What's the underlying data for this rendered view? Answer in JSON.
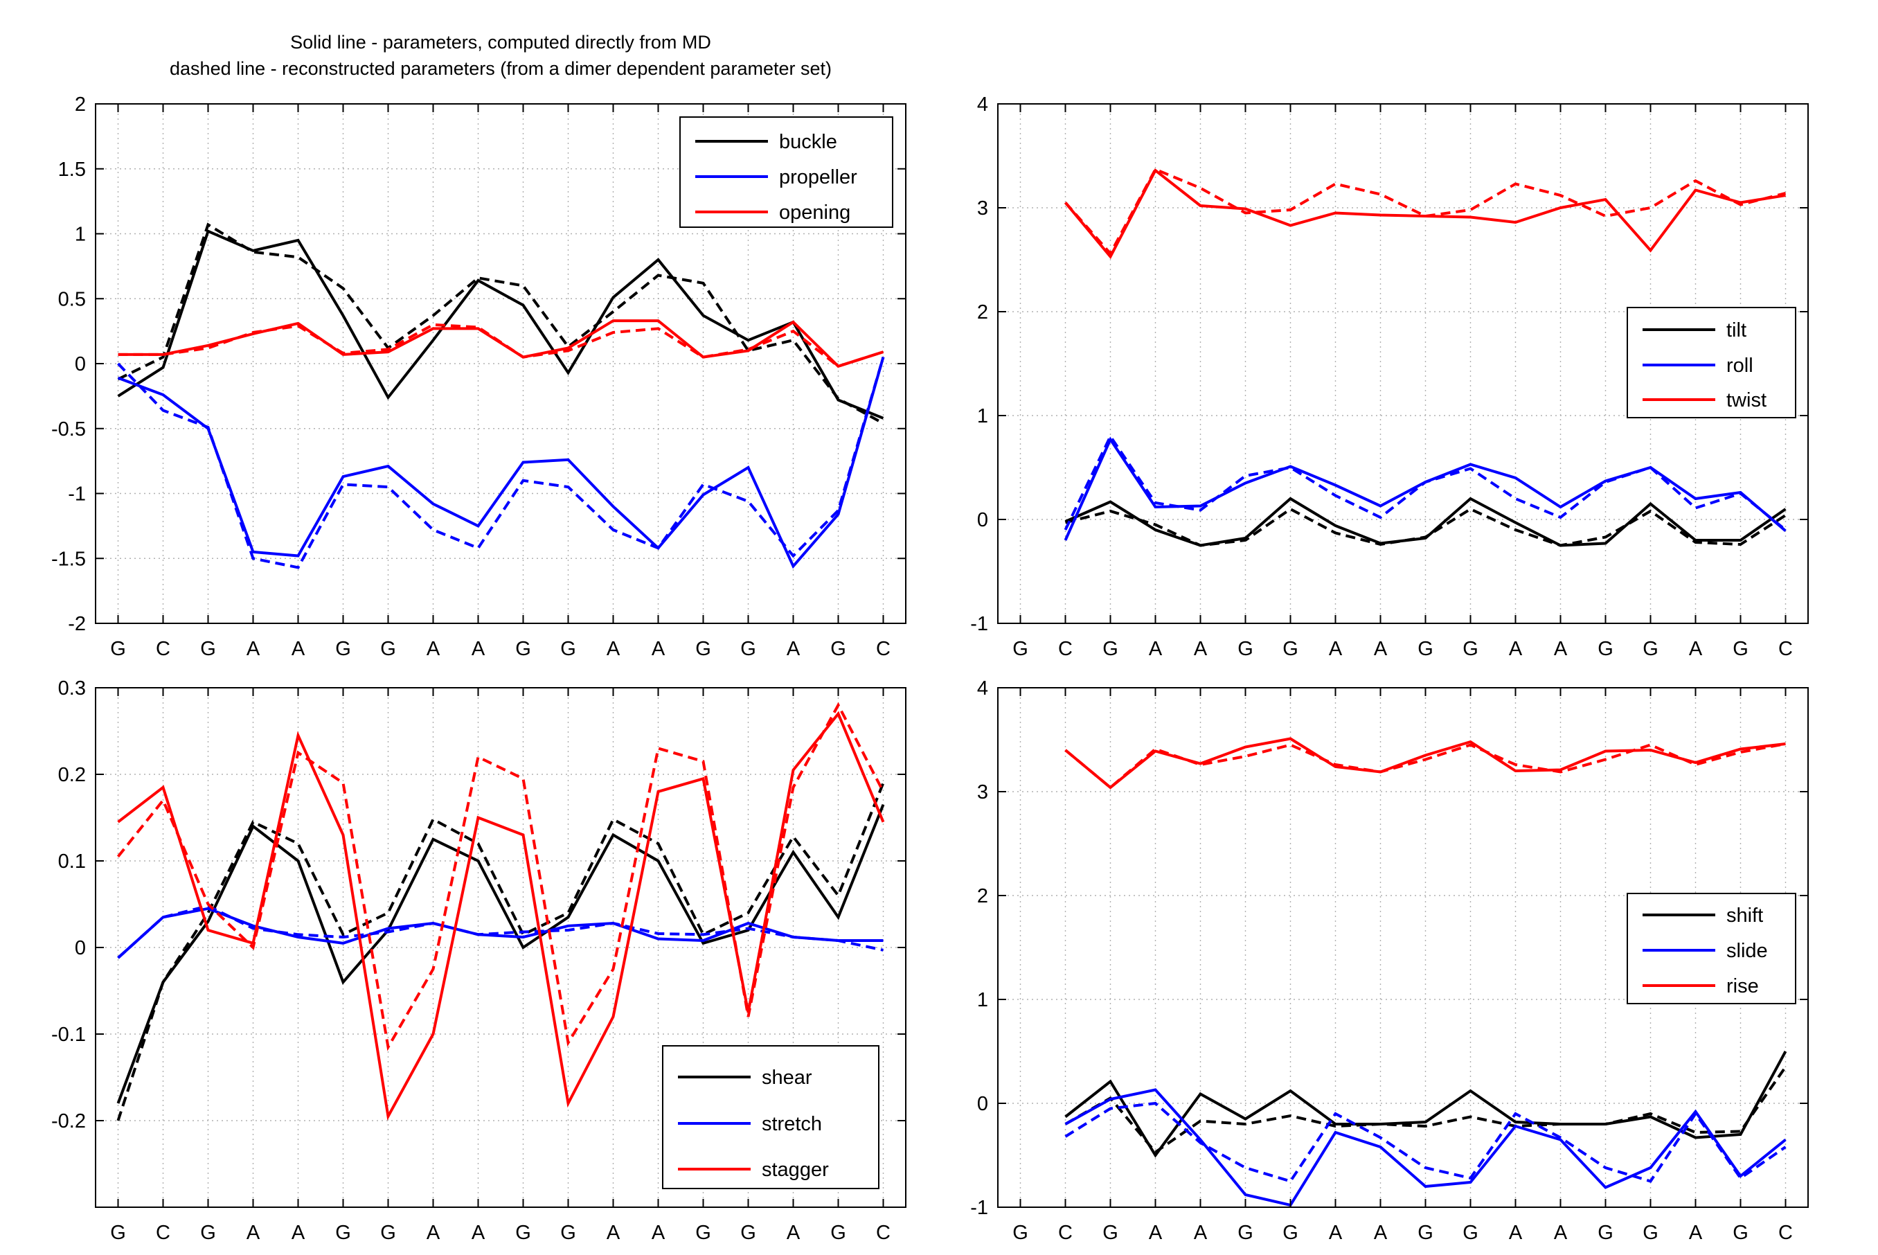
{
  "title_lines": [
    "Solid line - parameters, computed directly from MD",
    "dashed line - reconstructed parameters (from a dimer dependent parameter set)"
  ],
  "colors": {
    "black": "#000000",
    "blue": "#0000ff",
    "red": "#ff0000",
    "grid": "#b0b0b0"
  },
  "chart_data": [
    {
      "type": "line",
      "name": "base-pair-rotations",
      "categories": [
        "G",
        "C",
        "G",
        "A",
        "A",
        "G",
        "G",
        "A",
        "A",
        "G",
        "G",
        "A",
        "A",
        "G",
        "G",
        "A",
        "G",
        "C"
      ],
      "xlim": [
        0.5,
        18.5
      ],
      "ylim": [
        -2,
        2
      ],
      "yticks": [
        "2",
        "1.5",
        "1",
        "0.5",
        "0",
        "-0.5",
        "-1",
        "-1.5",
        "-2"
      ],
      "grid": true,
      "legend_position": "top-right",
      "series": [
        {
          "name": "buckle",
          "color": "#000000",
          "style": "solid",
          "values": [
            -0.25,
            -0.03,
            1.02,
            0.87,
            0.95,
            0.37,
            -0.26,
            0.18,
            0.64,
            0.45,
            -0.07,
            0.51,
            0.8,
            0.37,
            0.18,
            0.32,
            -0.28,
            -0.42
          ]
        },
        {
          "name": "buckle (reconstructed)",
          "color": "#000000",
          "style": "dashed",
          "values": [
            -0.12,
            0.05,
            1.07,
            0.86,
            0.82,
            0.58,
            0.12,
            0.37,
            0.66,
            0.6,
            0.13,
            0.4,
            0.68,
            0.62,
            0.1,
            0.18,
            -0.27,
            -0.46
          ]
        },
        {
          "name": "propeller",
          "color": "#0000ff",
          "style": "solid",
          "values": [
            -0.11,
            -0.24,
            -0.5,
            -1.45,
            -1.48,
            -0.87,
            -0.79,
            -1.08,
            -1.25,
            -0.76,
            -0.74,
            -1.1,
            -1.42,
            -1.01,
            -0.8,
            -1.56,
            -1.16,
            0.05
          ]
        },
        {
          "name": "propeller (reconstructed)",
          "color": "#0000ff",
          "style": "dashed",
          "values": [
            0.0,
            -0.36,
            -0.49,
            -1.5,
            -1.57,
            -0.93,
            -0.95,
            -1.28,
            -1.42,
            -0.9,
            -0.95,
            -1.28,
            -1.42,
            -0.93,
            -1.06,
            -1.48,
            -1.13,
            0.05
          ]
        },
        {
          "name": "opening",
          "color": "#ff0000",
          "style": "solid",
          "values": [
            0.07,
            0.07,
            0.14,
            0.23,
            0.31,
            0.07,
            0.09,
            0.27,
            0.27,
            0.05,
            0.12,
            0.33,
            0.33,
            0.05,
            0.1,
            0.32,
            -0.02,
            0.09
          ]
        },
        {
          "name": "opening (reconstructed)",
          "color": "#ff0000",
          "style": "dashed",
          "values": [
            0.07,
            0.07,
            0.12,
            0.24,
            0.29,
            0.08,
            0.11,
            0.3,
            0.28,
            0.05,
            0.1,
            0.24,
            0.27,
            0.05,
            0.11,
            0.25,
            -0.02,
            0.09
          ]
        }
      ]
    },
    {
      "type": "line",
      "name": "step-rotations",
      "categories": [
        "G",
        "C",
        "G",
        "A",
        "A",
        "G",
        "G",
        "A",
        "A",
        "G",
        "G",
        "A",
        "A",
        "G",
        "G",
        "A",
        "G",
        "C"
      ],
      "xlim": [
        0.5,
        18.5
      ],
      "ylim": [
        -1,
        4
      ],
      "yticks": [
        "4",
        "3",
        "2",
        "1",
        "0",
        "-1"
      ],
      "grid": true,
      "legend_position": "right",
      "series": [
        {
          "name": "tilt",
          "color": "#000000",
          "style": "solid",
          "values": [
            null,
            -0.02,
            0.17,
            -0.1,
            -0.25,
            -0.18,
            0.2,
            -0.06,
            -0.23,
            -0.18,
            0.2,
            -0.03,
            -0.25,
            -0.23,
            0.15,
            -0.2,
            -0.2,
            0.1
          ]
        },
        {
          "name": "tilt (reconstructed)",
          "color": "#000000",
          "style": "dashed",
          "values": [
            null,
            -0.03,
            0.08,
            -0.05,
            -0.25,
            -0.2,
            0.1,
            -0.13,
            -0.24,
            -0.17,
            0.1,
            -0.1,
            -0.25,
            -0.17,
            0.08,
            -0.22,
            -0.24,
            0.04
          ]
        },
        {
          "name": "roll",
          "color": "#0000ff",
          "style": "solid",
          "values": [
            null,
            -0.2,
            0.77,
            0.12,
            0.13,
            0.35,
            0.51,
            0.33,
            0.13,
            0.36,
            0.53,
            0.4,
            0.12,
            0.37,
            0.5,
            0.2,
            0.26,
            -0.11
          ]
        },
        {
          "name": "roll (reconstructed)",
          "color": "#0000ff",
          "style": "dashed",
          "values": [
            null,
            -0.1,
            0.8,
            0.16,
            0.09,
            0.42,
            0.5,
            0.23,
            0.02,
            0.36,
            0.49,
            0.2,
            0.02,
            0.36,
            0.5,
            0.11,
            0.25,
            -0.1
          ]
        },
        {
          "name": "twist",
          "color": "#ff0000",
          "style": "solid",
          "values": [
            null,
            3.05,
            2.53,
            3.36,
            3.02,
            2.99,
            2.83,
            2.95,
            2.93,
            2.92,
            2.91,
            2.86,
            3.0,
            3.08,
            2.59,
            3.17,
            3.05,
            3.12
          ]
        },
        {
          "name": "twist (reconstructed)",
          "color": "#ff0000",
          "style": "dashed",
          "values": [
            null,
            3.05,
            2.56,
            3.37,
            3.19,
            2.95,
            2.98,
            3.23,
            3.13,
            2.92,
            2.98,
            3.23,
            3.12,
            2.92,
            3.0,
            3.26,
            3.03,
            3.14
          ]
        }
      ]
    },
    {
      "type": "line",
      "name": "base-pair-translations",
      "categories": [
        "G",
        "C",
        "G",
        "A",
        "A",
        "G",
        "G",
        "A",
        "A",
        "G",
        "G",
        "A",
        "A",
        "G",
        "G",
        "A",
        "G",
        "C"
      ],
      "xlim": [
        0.5,
        18.5
      ],
      "ylim": [
        -0.3,
        0.3
      ],
      "yticks": [
        "0.3",
        "0.2",
        "0.1",
        "0",
        "-0.1",
        "-0.2"
      ],
      "grid": true,
      "legend_position": "bottom-right",
      "series": [
        {
          "name": "shear",
          "color": "#000000",
          "style": "solid",
          "values": [
            -0.18,
            -0.04,
            0.03,
            0.14,
            0.1,
            -0.04,
            0.02,
            0.125,
            0.1,
            0.0,
            0.035,
            0.13,
            0.1,
            0.005,
            0.02,
            0.11,
            0.035,
            0.165
          ]
        },
        {
          "name": "shear (reconstructed)",
          "color": "#000000",
          "style": "dashed",
          "values": [
            -0.2,
            -0.04,
            0.04,
            0.145,
            0.12,
            0.015,
            0.04,
            0.148,
            0.12,
            0.015,
            0.04,
            0.148,
            0.12,
            0.015,
            0.04,
            0.128,
            0.06,
            0.19
          ]
        },
        {
          "name": "stretch",
          "color": "#0000ff",
          "style": "solid",
          "values": [
            -0.012,
            0.035,
            0.045,
            0.025,
            0.012,
            0.005,
            0.022,
            0.028,
            0.015,
            0.012,
            0.025,
            0.028,
            0.01,
            0.008,
            0.028,
            0.012,
            0.008,
            0.008
          ]
        },
        {
          "name": "stretch (reconstructed)",
          "color": "#0000ff",
          "style": "dashed",
          "values": [
            -0.012,
            0.035,
            0.048,
            0.022,
            0.015,
            0.012,
            0.018,
            0.028,
            0.015,
            0.018,
            0.02,
            0.028,
            0.016,
            0.015,
            0.022,
            0.012,
            0.008,
            -0.003
          ]
        },
        {
          "name": "stagger",
          "color": "#ff0000",
          "style": "solid",
          "values": [
            0.145,
            0.185,
            0.02,
            0.005,
            0.245,
            0.13,
            -0.195,
            -0.1,
            0.15,
            0.13,
            -0.18,
            -0.08,
            0.18,
            0.195,
            -0.075,
            0.205,
            0.27,
            0.145
          ]
        },
        {
          "name": "stagger (reconstructed)",
          "color": "#ff0000",
          "style": "dashed",
          "values": [
            0.105,
            0.17,
            0.05,
            0.0,
            0.225,
            0.19,
            -0.115,
            -0.025,
            0.22,
            0.195,
            -0.11,
            -0.025,
            0.23,
            0.215,
            -0.08,
            0.185,
            0.28,
            0.18
          ]
        }
      ]
    },
    {
      "type": "line",
      "name": "step-translations",
      "categories": [
        "G",
        "C",
        "G",
        "A",
        "A",
        "G",
        "G",
        "A",
        "A",
        "G",
        "G",
        "A",
        "A",
        "G",
        "G",
        "A",
        "G",
        "C"
      ],
      "xlim": [
        0.5,
        18.5
      ],
      "ylim": [
        -1,
        4
      ],
      "yticks": [
        "4",
        "3",
        "2",
        "1",
        "0",
        "-1"
      ],
      "grid": true,
      "legend_position": "right",
      "series": [
        {
          "name": "shift",
          "color": "#000000",
          "style": "solid",
          "values": [
            null,
            -0.13,
            0.21,
            -0.5,
            0.09,
            -0.15,
            0.12,
            -0.2,
            -0.2,
            -0.18,
            0.12,
            -0.18,
            -0.2,
            -0.2,
            -0.13,
            -0.33,
            -0.3,
            0.5
          ]
        },
        {
          "name": "shift (reconstructed)",
          "color": "#000000",
          "style": "dashed",
          "values": [
            null,
            -0.2,
            0.05,
            -0.47,
            -0.17,
            -0.2,
            -0.12,
            -0.22,
            -0.2,
            -0.22,
            -0.13,
            -0.22,
            -0.2,
            -0.2,
            -0.1,
            -0.28,
            -0.27,
            0.35
          ]
        },
        {
          "name": "slide",
          "color": "#0000ff",
          "style": "solid",
          "values": [
            null,
            -0.2,
            0.04,
            0.13,
            -0.35,
            -0.88,
            -0.98,
            -0.28,
            -0.42,
            -0.8,
            -0.76,
            -0.22,
            -0.35,
            -0.81,
            -0.62,
            -0.08,
            -0.7,
            -0.35
          ]
        },
        {
          "name": "slide (reconstructed)",
          "color": "#0000ff",
          "style": "dashed",
          "values": [
            null,
            -0.32,
            -0.05,
            0.0,
            -0.38,
            -0.62,
            -0.75,
            -0.1,
            -0.33,
            -0.62,
            -0.72,
            -0.1,
            -0.33,
            -0.62,
            -0.75,
            -0.1,
            -0.72,
            -0.42
          ]
        },
        {
          "name": "rise",
          "color": "#ff0000",
          "style": "solid",
          "values": [
            null,
            3.4,
            3.04,
            3.39,
            3.27,
            3.43,
            3.51,
            3.24,
            3.19,
            3.35,
            3.48,
            3.2,
            3.21,
            3.39,
            3.4,
            3.28,
            3.41,
            3.46
          ]
        },
        {
          "name": "rise (reconstructed)",
          "color": "#ff0000",
          "style": "dashed",
          "values": [
            null,
            3.4,
            3.04,
            3.41,
            3.26,
            3.34,
            3.45,
            3.26,
            3.19,
            3.31,
            3.45,
            3.26,
            3.19,
            3.31,
            3.45,
            3.26,
            3.38,
            3.46
          ]
        }
      ]
    }
  ],
  "legends": [
    [
      "buckle",
      "propeller",
      "opening"
    ],
    [
      "tilt",
      "roll",
      "twist"
    ],
    [
      "shear",
      "stretch",
      "stagger"
    ],
    [
      "shift",
      "slide",
      "rise"
    ]
  ]
}
